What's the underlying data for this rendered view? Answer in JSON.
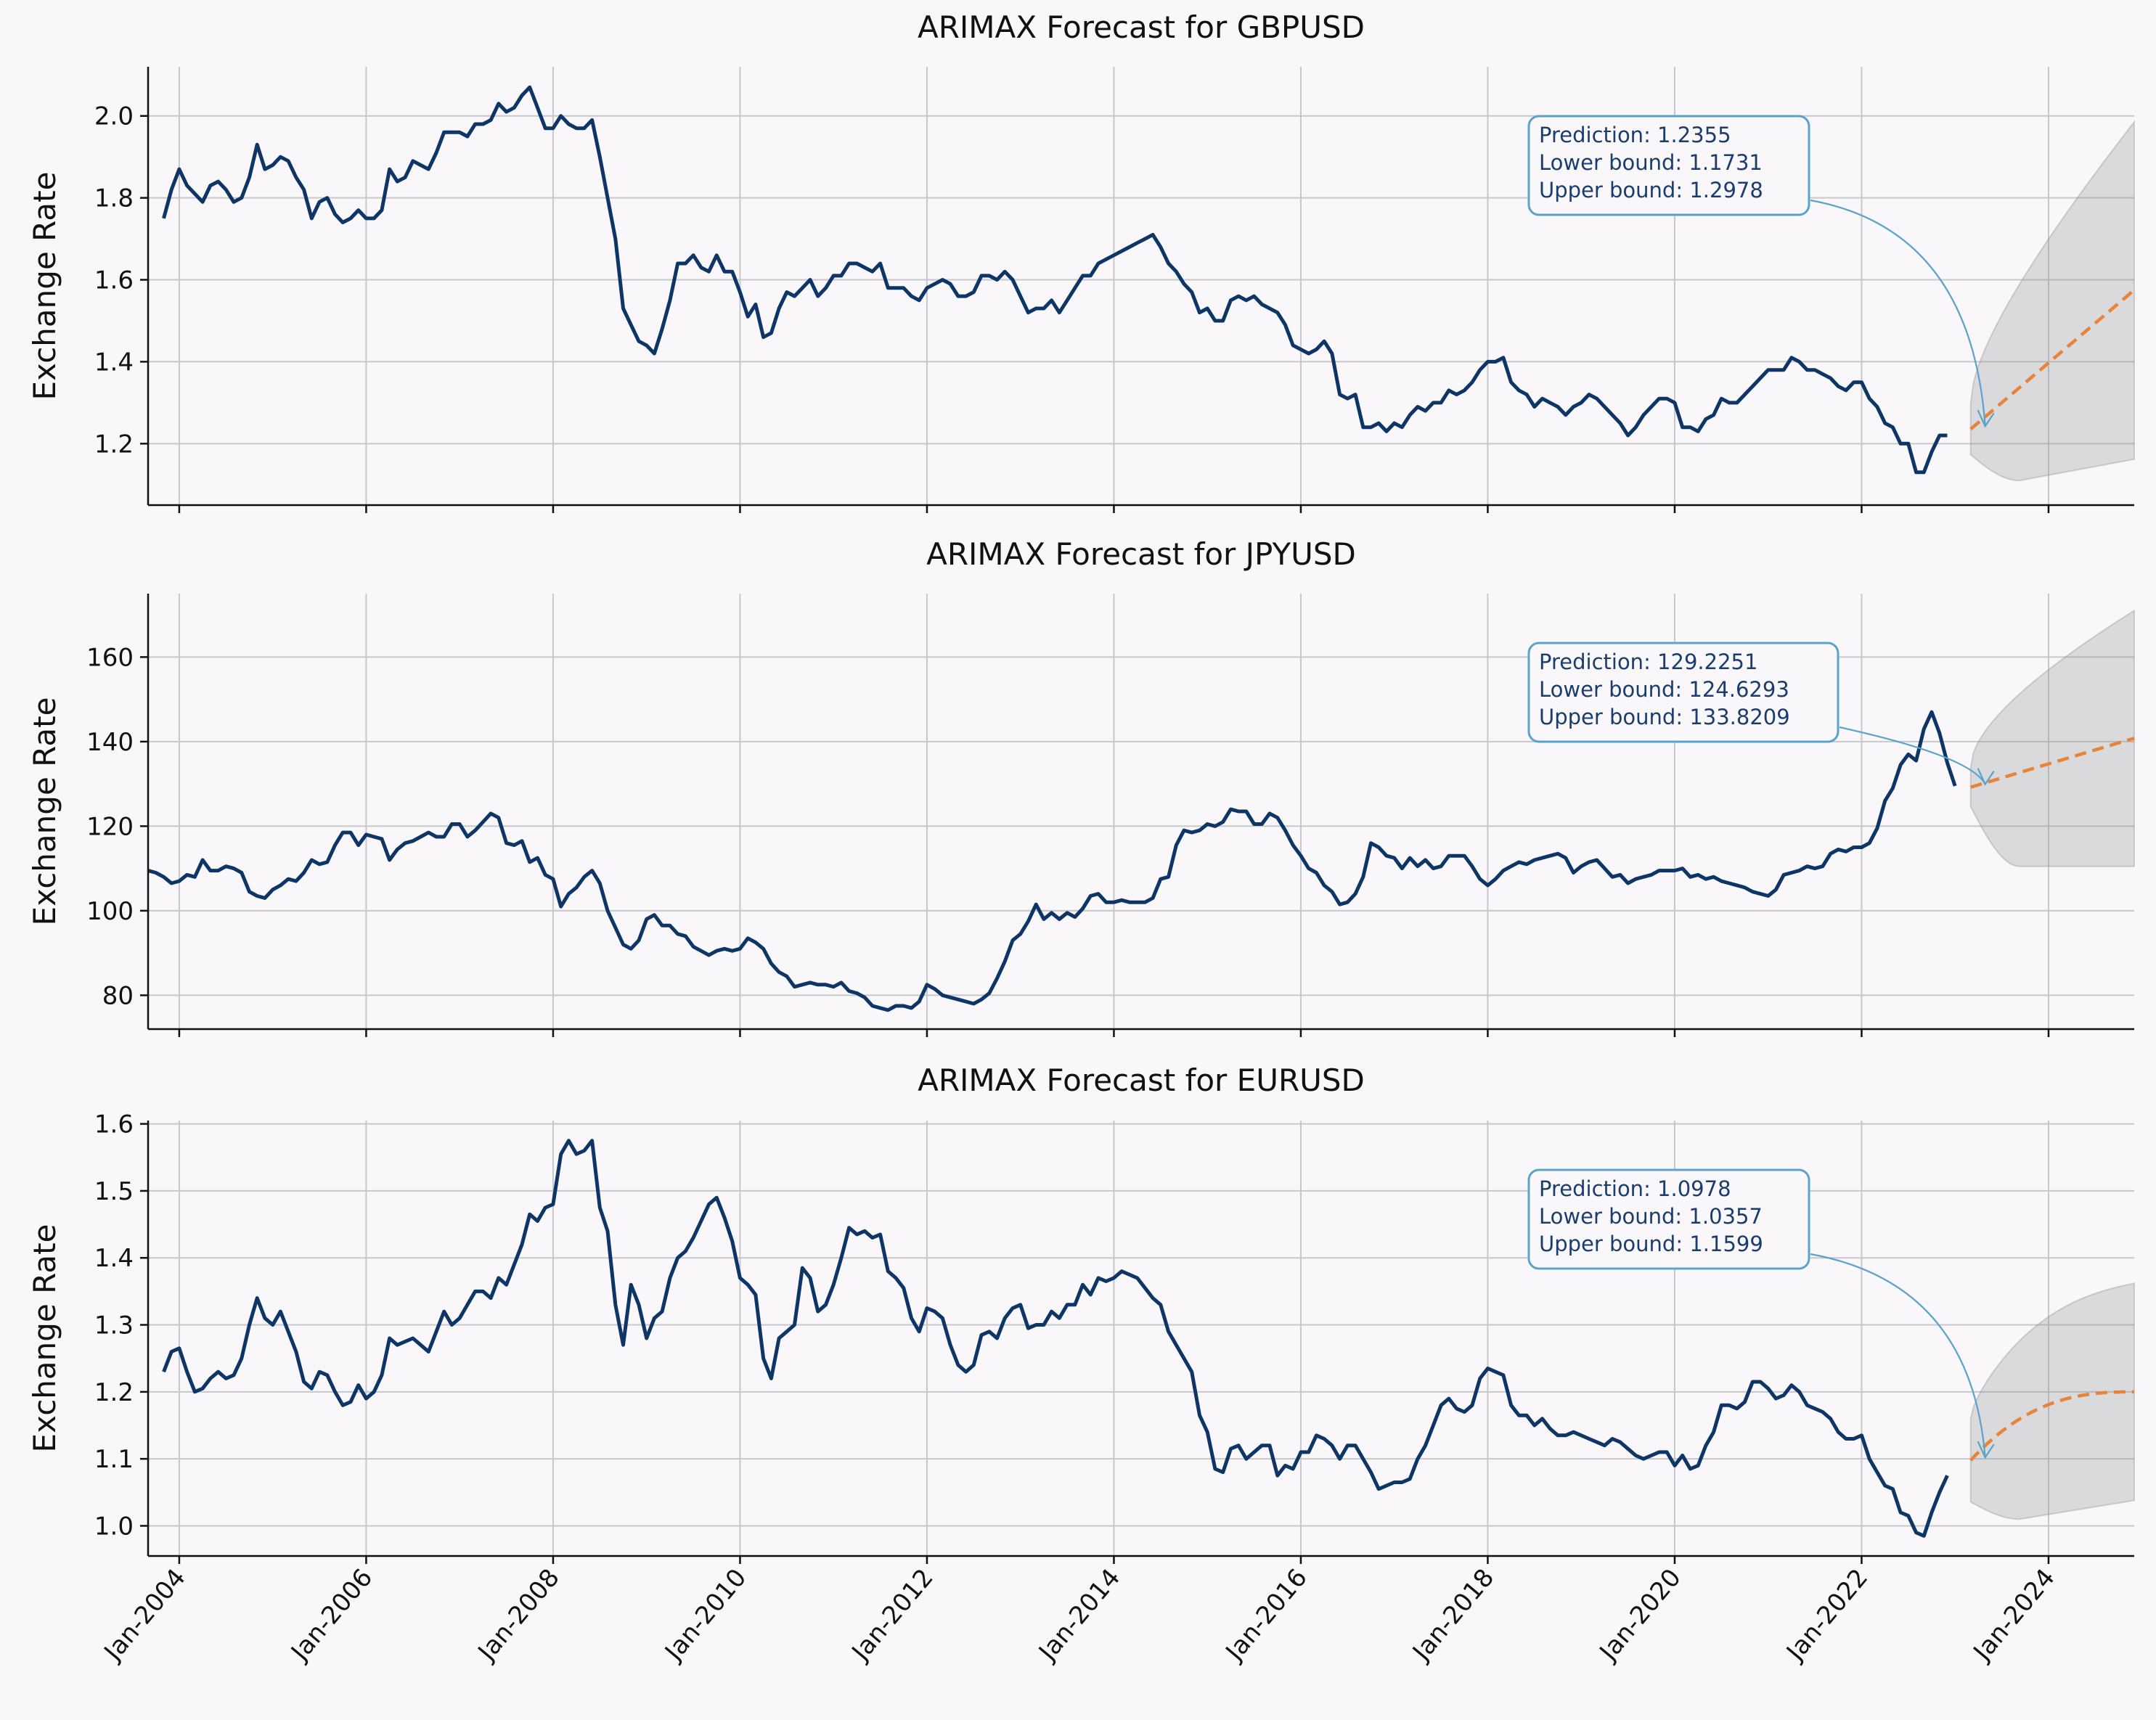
{
  "colors": {
    "background": "#f9f7fa",
    "history_line": "#0d3566",
    "forecast_line": "#e8833a",
    "interval_fill": "#8c8c8c",
    "annotation_border": "#5aa3cb",
    "annotation_text": "#1a3d6d",
    "grid": "#c8c8cc"
  },
  "chart_data": [
    {
      "type": "line",
      "title": "ARIMAX Forecast for GBPUSD",
      "ylabel": "Exchange Rate",
      "xlabel": "",
      "ylim": [
        1.05,
        2.12
      ],
      "yticks": [
        1.2,
        1.4,
        1.6,
        1.8,
        2.0
      ],
      "ytick_labels": [
        "1.2",
        "1.4",
        "1.6",
        "1.8",
        "2.0"
      ],
      "xlim": [
        "2003-09",
        "2024-12"
      ],
      "grid": true,
      "history": {
        "start": "2003-11",
        "values": [
          1.75,
          1.82,
          1.87,
          1.83,
          1.81,
          1.79,
          1.83,
          1.84,
          1.82,
          1.79,
          1.8,
          1.85,
          1.93,
          1.87,
          1.88,
          1.9,
          1.89,
          1.85,
          1.82,
          1.75,
          1.79,
          1.8,
          1.76,
          1.74,
          1.75,
          1.77,
          1.75,
          1.75,
          1.77,
          1.87,
          1.84,
          1.85,
          1.89,
          1.88,
          1.87,
          1.91,
          1.96,
          1.96,
          1.96,
          1.95,
          1.98,
          1.98,
          1.99,
          2.03,
          2.01,
          2.02,
          2.05,
          2.07,
          2.02,
          1.97,
          1.97,
          2.0,
          1.98,
          1.97,
          1.97,
          1.99,
          1.9,
          1.8,
          1.7,
          1.53,
          1.49,
          1.45,
          1.44,
          1.42,
          1.48,
          1.55,
          1.64,
          1.64,
          1.66,
          1.63,
          1.62,
          1.66,
          1.62,
          1.62,
          1.57,
          1.51,
          1.54,
          1.46,
          1.47,
          1.53,
          1.57,
          1.56,
          1.58,
          1.6,
          1.56,
          1.58,
          1.61,
          1.61,
          1.64,
          1.64,
          1.63,
          1.62,
          1.64,
          1.58,
          1.58,
          1.58,
          1.56,
          1.55,
          1.58,
          1.59,
          1.6,
          1.59,
          1.56,
          1.56,
          1.57,
          1.61,
          1.61,
          1.6,
          1.62,
          1.6,
          1.56,
          1.52,
          1.53,
          1.53,
          1.55,
          1.52,
          1.55,
          1.58,
          1.61,
          1.61,
          1.64,
          1.65,
          1.66,
          1.67,
          1.68,
          1.69,
          1.7,
          1.71,
          1.68,
          1.64,
          1.62,
          1.59,
          1.57,
          1.52,
          1.53,
          1.5,
          1.5,
          1.55,
          1.56,
          1.55,
          1.56,
          1.54,
          1.53,
          1.52,
          1.49,
          1.44,
          1.43,
          1.42,
          1.43,
          1.45,
          1.42,
          1.32,
          1.31,
          1.32,
          1.24,
          1.24,
          1.25,
          1.23,
          1.25,
          1.24,
          1.27,
          1.29,
          1.28,
          1.3,
          1.3,
          1.33,
          1.32,
          1.33,
          1.35,
          1.38,
          1.4,
          1.4,
          1.41,
          1.35,
          1.33,
          1.32,
          1.29,
          1.31,
          1.3,
          1.29,
          1.27,
          1.29,
          1.3,
          1.32,
          1.31,
          1.29,
          1.27,
          1.25,
          1.22,
          1.24,
          1.27,
          1.29,
          1.31,
          1.31,
          1.3,
          1.24,
          1.24,
          1.23,
          1.26,
          1.27,
          1.31,
          1.3,
          1.3,
          1.32,
          1.34,
          1.36,
          1.38,
          1.38,
          1.38,
          1.41,
          1.4,
          1.38,
          1.38,
          1.37,
          1.36,
          1.34,
          1.33,
          1.35,
          1.35,
          1.31,
          1.29,
          1.25,
          1.24,
          1.2,
          1.2,
          1.13,
          1.13,
          1.18,
          1.22,
          1.22
        ]
      },
      "forecast": {
        "start": "2023-03",
        "end": "2024-12",
        "values_start": 1.2355,
        "values_end": 1.575,
        "lower_start": 1.1731,
        "lower_min": 1.11,
        "lower_end": 1.162,
        "upper_start": 1.2978,
        "upper_end": 1.985
      },
      "annotation": {
        "lines": [
          "Prediction: 1.2355",
          "Lower bound: 1.1731",
          "Upper bound: 1.2978"
        ]
      }
    },
    {
      "type": "line",
      "title": "ARIMAX Forecast for JPYUSD",
      "ylabel": "Exchange Rate",
      "xlabel": "",
      "ylim": [
        72,
        175
      ],
      "yticks": [
        80,
        100,
        120,
        140,
        160
      ],
      "ytick_labels": [
        "80",
        "100",
        "120",
        "140",
        "160"
      ],
      "xlim": [
        "2003-09",
        "2024-12"
      ],
      "grid": true,
      "history": {
        "start": "2003-09",
        "values": [
          109.5,
          109,
          108,
          106.5,
          107,
          108.5,
          108,
          112,
          109.5,
          109.5,
          110.5,
          110,
          109,
          104.5,
          103.5,
          103,
          105,
          106,
          107.5,
          107,
          109,
          112,
          111,
          111.5,
          115.5,
          118.5,
          118.5,
          115.5,
          118,
          117.5,
          117,
          112,
          114.5,
          116,
          116.5,
          117.5,
          118.5,
          117.5,
          117.5,
          120.5,
          120.5,
          117.5,
          119,
          121,
          123,
          122,
          116,
          115.5,
          116.5,
          111.5,
          112.5,
          108.5,
          107.5,
          101,
          104,
          105.5,
          108,
          109.5,
          106.5,
          100,
          96,
          92,
          91,
          93,
          98,
          99,
          96.5,
          96.5,
          94.5,
          94,
          91.5,
          90.5,
          89.5,
          90.5,
          91,
          90.5,
          91,
          93.5,
          92.5,
          91,
          87.5,
          85.5,
          84.5,
          82,
          82.5,
          83,
          82.5,
          82.5,
          82,
          83,
          81,
          80.5,
          79.5,
          77.5,
          77,
          76.5,
          77.5,
          77.5,
          77,
          78.5,
          82.5,
          81.5,
          80,
          79.5,
          79,
          78.5,
          78,
          79,
          80.5,
          84,
          88,
          93,
          94.5,
          97.5,
          101.5,
          98,
          99.5,
          98,
          99.5,
          98.5,
          100.5,
          103.5,
          104,
          102,
          102,
          102.5,
          102,
          102,
          102,
          103,
          107.5,
          108,
          115.5,
          119,
          118.5,
          119,
          120.5,
          120,
          121,
          124,
          123.5,
          123.5,
          120.5,
          120.5,
          123,
          122,
          119,
          115.5,
          113,
          110,
          109,
          106,
          104.5,
          101.5,
          102,
          104,
          108,
          116,
          115,
          113,
          112.5,
          110,
          112.5,
          110.5,
          112,
          110,
          110.5,
          113,
          113,
          113,
          110.5,
          107.5,
          106,
          107.5,
          109.5,
          110.5,
          111.5,
          111,
          112,
          112.5,
          113,
          113.5,
          112.5,
          109,
          110.5,
          111.5,
          112,
          110,
          108,
          108.5,
          106.5,
          107.5,
          108,
          108.5,
          109.5,
          109.5,
          109.5,
          110,
          108,
          108.5,
          107.5,
          108,
          107,
          106.5,
          106,
          105.5,
          104.5,
          104,
          103.5,
          105,
          108.5,
          109,
          109.5,
          110.5,
          110,
          110.5,
          113.5,
          114.5,
          114,
          115,
          115,
          116,
          119.5,
          126,
          129,
          134.5,
          137,
          135.5,
          143,
          147,
          142,
          135,
          129.5
        ]
      },
      "forecast": {
        "start": "2023-03",
        "end": "2024-12",
        "values_start": 129.2251,
        "values_end": 140.8,
        "lower_start": 124.6293,
        "lower_min": 110.5,
        "lower_end": 110.5,
        "upper_start": 133.8209,
        "upper_end": 171
      },
      "annotation": {
        "lines": [
          "Prediction: 129.2251",
          "Lower bound: 124.6293",
          "Upper bound: 133.8209"
        ]
      }
    },
    {
      "type": "line",
      "title": "ARIMAX Forecast for EURUSD",
      "ylabel": "Exchange Rate",
      "xlabel": "",
      "ylim": [
        0.955,
        1.605
      ],
      "yticks": [
        1.0,
        1.1,
        1.2,
        1.3,
        1.4,
        1.5,
        1.6
      ],
      "ytick_labels": [
        "1.0",
        "1.1",
        "1.2",
        "1.3",
        "1.4",
        "1.5",
        "1.6"
      ],
      "xlim": [
        "2003-09",
        "2024-12"
      ],
      "xticks": [
        "2004-01",
        "2006-01",
        "2008-01",
        "2010-01",
        "2012-01",
        "2014-01",
        "2016-01",
        "2018-01",
        "2020-01",
        "2022-01",
        "2024-01"
      ],
      "xtick_labels": [
        "Jan-2004",
        "Jan-2006",
        "Jan-2008",
        "Jan-2010",
        "Jan-2012",
        "Jan-2014",
        "Jan-2016",
        "Jan-2018",
        "Jan-2020",
        "Jan-2022",
        "Jan-2024"
      ],
      "grid": true,
      "history": {
        "start": "2003-11",
        "values": [
          1.23,
          1.26,
          1.265,
          1.23,
          1.2,
          1.205,
          1.22,
          1.23,
          1.22,
          1.225,
          1.25,
          1.3,
          1.34,
          1.31,
          1.3,
          1.32,
          1.29,
          1.26,
          1.215,
          1.205,
          1.23,
          1.225,
          1.2,
          1.18,
          1.185,
          1.21,
          1.19,
          1.2,
          1.225,
          1.28,
          1.27,
          1.275,
          1.28,
          1.27,
          1.26,
          1.29,
          1.32,
          1.3,
          1.31,
          1.33,
          1.35,
          1.35,
          1.34,
          1.37,
          1.36,
          1.39,
          1.42,
          1.465,
          1.455,
          1.475,
          1.48,
          1.555,
          1.575,
          1.555,
          1.56,
          1.575,
          1.475,
          1.44,
          1.33,
          1.27,
          1.36,
          1.33,
          1.28,
          1.31,
          1.32,
          1.37,
          1.4,
          1.41,
          1.43,
          1.455,
          1.48,
          1.49,
          1.46,
          1.425,
          1.37,
          1.36,
          1.345,
          1.25,
          1.22,
          1.28,
          1.29,
          1.3,
          1.385,
          1.37,
          1.32,
          1.33,
          1.36,
          1.4,
          1.445,
          1.435,
          1.44,
          1.43,
          1.435,
          1.38,
          1.37,
          1.355,
          1.31,
          1.29,
          1.325,
          1.32,
          1.31,
          1.27,
          1.24,
          1.23,
          1.24,
          1.285,
          1.29,
          1.28,
          1.31,
          1.325,
          1.33,
          1.295,
          1.3,
          1.3,
          1.32,
          1.31,
          1.33,
          1.33,
          1.36,
          1.345,
          1.37,
          1.365,
          1.37,
          1.38,
          1.375,
          1.37,
          1.355,
          1.34,
          1.33,
          1.29,
          1.27,
          1.25,
          1.23,
          1.165,
          1.14,
          1.085,
          1.08,
          1.115,
          1.12,
          1.1,
          1.11,
          1.12,
          1.12,
          1.075,
          1.09,
          1.085,
          1.11,
          1.11,
          1.135,
          1.13,
          1.12,
          1.1,
          1.12,
          1.12,
          1.1,
          1.08,
          1.055,
          1.06,
          1.065,
          1.065,
          1.07,
          1.1,
          1.12,
          1.15,
          1.18,
          1.19,
          1.175,
          1.17,
          1.18,
          1.22,
          1.235,
          1.23,
          1.225,
          1.18,
          1.165,
          1.165,
          1.15,
          1.16,
          1.145,
          1.135,
          1.135,
          1.14,
          1.135,
          1.13,
          1.125,
          1.12,
          1.13,
          1.125,
          1.115,
          1.105,
          1.1,
          1.105,
          1.11,
          1.11,
          1.09,
          1.105,
          1.085,
          1.09,
          1.12,
          1.14,
          1.18,
          1.18,
          1.175,
          1.185,
          1.215,
          1.215,
          1.205,
          1.19,
          1.195,
          1.21,
          1.2,
          1.18,
          1.175,
          1.17,
          1.16,
          1.14,
          1.13,
          1.13,
          1.135,
          1.1,
          1.08,
          1.06,
          1.055,
          1.02,
          1.015,
          0.99,
          0.985,
          1.02,
          1.05,
          1.075
        ]
      },
      "forecast": {
        "start": "2023-03",
        "end": "2024-12",
        "values_start": 1.0978,
        "values_end": 1.2,
        "lower_start": 1.0357,
        "lower_min": 1.01,
        "lower_end": 1.038,
        "upper_start": 1.1599,
        "upper_end": 1.362
      },
      "annotation": {
        "lines": [
          "Prediction: 1.0978",
          "Lower bound: 1.0357",
          "Upper bound: 1.1599"
        ]
      }
    }
  ]
}
